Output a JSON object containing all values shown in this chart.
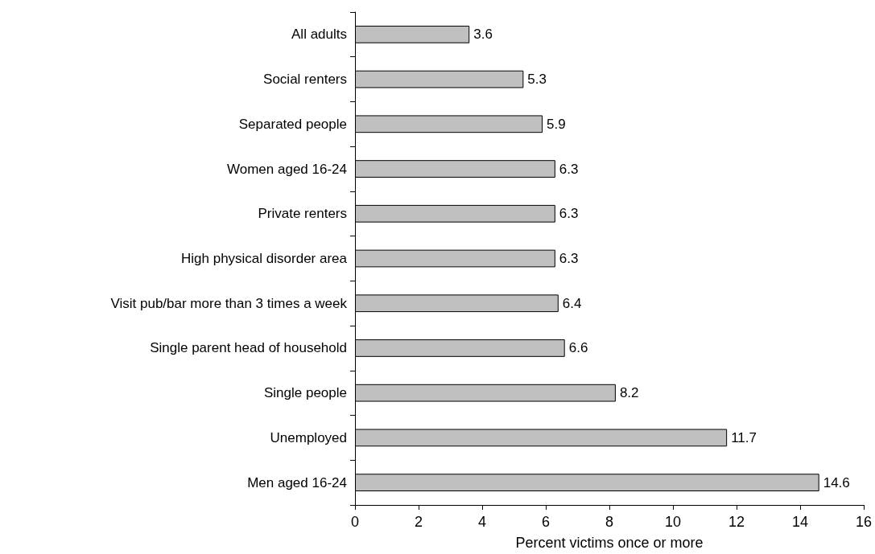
{
  "chart_data": {
    "type": "bar",
    "orientation": "horizontal",
    "xlabel": "Percent victims once or more",
    "categories": [
      "All adults",
      "Social renters",
      "Separated people",
      "Women aged 16-24",
      "Private renters",
      "High physical disorder area",
      "Visit pub/bar more than 3 times a week",
      "Single parent head of household",
      "Single people",
      "Unemployed",
      "Men aged 16-24"
    ],
    "values": [
      3.6,
      5.3,
      5.9,
      6.3,
      6.3,
      6.3,
      6.4,
      6.6,
      8.2,
      11.7,
      14.6
    ],
    "color": "#c0c0c0",
    "xlim": [
      0,
      16
    ],
    "xticks": [
      0,
      2,
      4,
      6,
      8,
      10,
      12,
      14,
      16
    ],
    "data_labels": true,
    "grid": false
  }
}
